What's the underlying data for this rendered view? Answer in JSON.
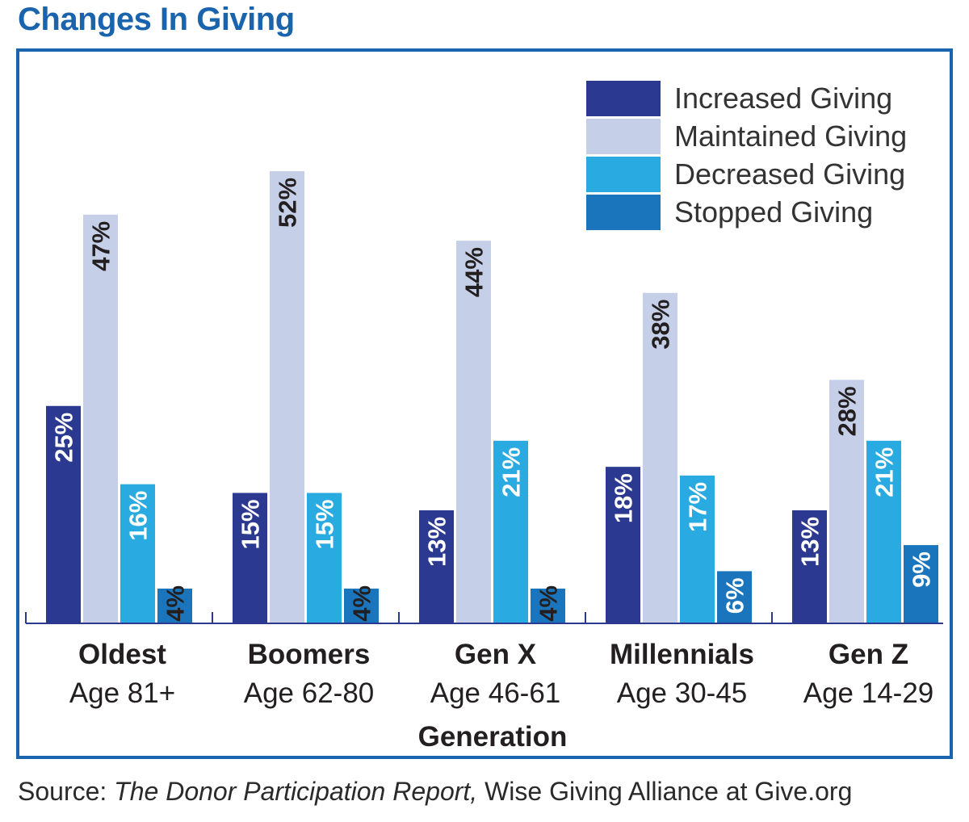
{
  "title": "Changes In Giving",
  "source": {
    "prefix": "Source: ",
    "title": "The Donor Participation Report,",
    "suffix": " Wise Giving Alliance at Give.org"
  },
  "colors": {
    "brand": "#1a64ad",
    "increased": "#2b3990",
    "maintained": "#c5d0e8",
    "decreased": "#29abe2",
    "stopped": "#1b75bc",
    "axis": "#2b3990",
    "text": "#231f20",
    "label_on_light": "#231f20",
    "label_on_dark": "#ffffff"
  },
  "chart_data": {
    "type": "bar",
    "title": "Changes In Giving",
    "xlabel": "Generation",
    "ylabel": "",
    "ylim": [
      0,
      56
    ],
    "grid": false,
    "legend_position": "top-right",
    "categories": [
      {
        "name": "Oldest",
        "sub": "Age 81+"
      },
      {
        "name": "Boomers",
        "sub": "Age 62-80"
      },
      {
        "name": "Gen X",
        "sub": "Age 46-61"
      },
      {
        "name": "Millennials",
        "sub": "Age 30-45"
      },
      {
        "name": "Gen Z",
        "sub": "Age 14-29"
      }
    ],
    "series": [
      {
        "name": "Increased Giving",
        "color_key": "increased",
        "values": [
          25,
          15,
          13,
          18,
          13
        ],
        "labels": [
          "25%",
          "15%",
          "13%",
          "18%",
          "13%"
        ]
      },
      {
        "name": "Maintained Giving",
        "color_key": "maintained",
        "values": [
          47,
          52,
          44,
          38,
          28
        ],
        "labels": [
          "47%",
          "52%",
          "44%",
          "38%",
          "28%"
        ]
      },
      {
        "name": "Decreased Giving",
        "color_key": "decreased",
        "values": [
          16,
          15,
          21,
          17,
          21
        ],
        "labels": [
          "16%",
          "15%",
          "21%",
          "17%",
          "21%"
        ]
      },
      {
        "name": "Stopped Giving",
        "color_key": "stopped",
        "values": [
          4,
          4,
          4,
          6,
          9
        ],
        "labels": [
          "4%",
          "4%",
          "4%",
          "6%",
          "9%"
        ]
      }
    ]
  }
}
